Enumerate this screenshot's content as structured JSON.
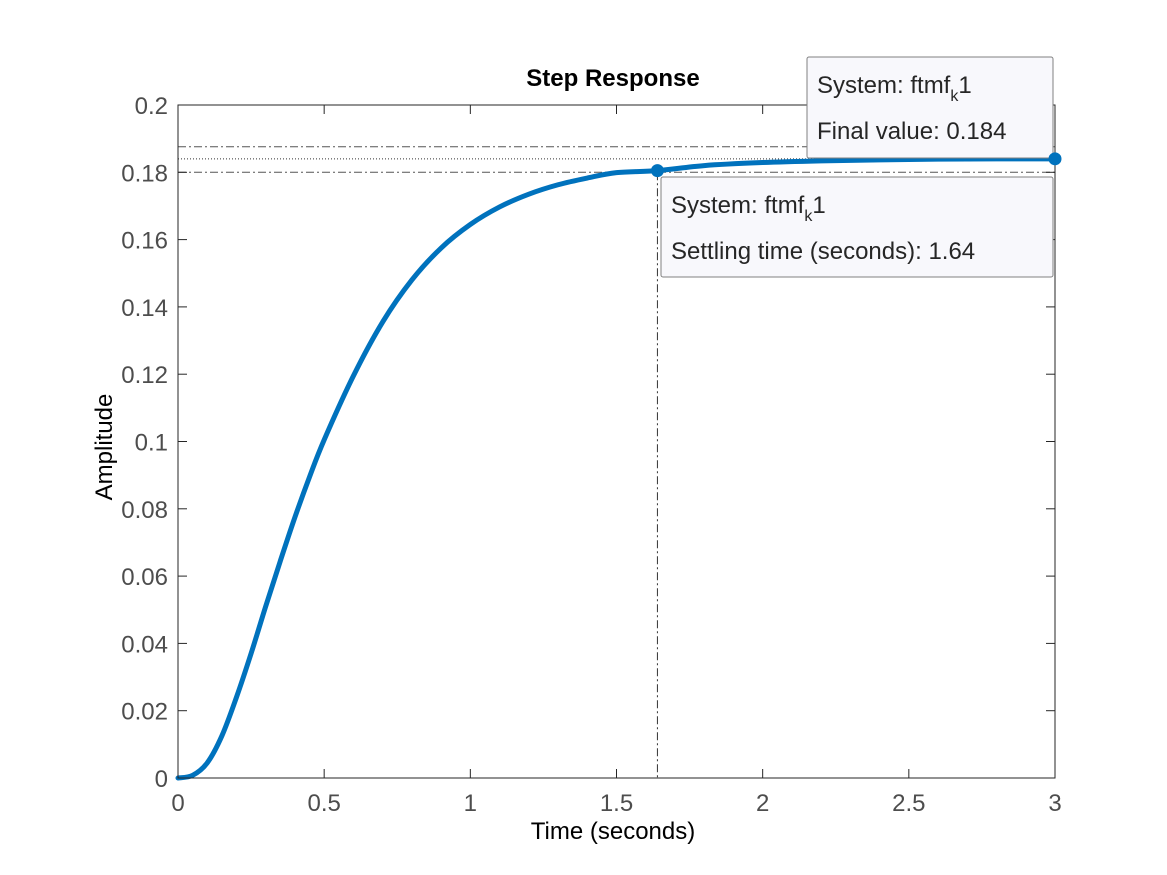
{
  "chart_data": {
    "type": "line",
    "title": "Step Response",
    "xlabel": "Time (seconds)",
    "ylabel": "Amplitude",
    "xlim": [
      0,
      3
    ],
    "ylim": [
      0,
      0.2
    ],
    "xticks": [
      0,
      0.5,
      1,
      1.5,
      2,
      2.5,
      3
    ],
    "xtick_labels": [
      "0",
      "0.5",
      "1",
      "1.5",
      "2",
      "2.5",
      "3"
    ],
    "yticks": [
      0,
      0.02,
      0.04,
      0.06,
      0.08,
      0.1,
      0.12,
      0.14,
      0.16,
      0.18,
      0.2
    ],
    "ytick_labels": [
      "0",
      "0.02",
      "0.04",
      "0.06",
      "0.08",
      "0.1",
      "0.12",
      "0.14",
      "0.16",
      "0.18",
      "0.2"
    ],
    "grid": false,
    "series": [
      {
        "color": "#0072BD",
        "x": [
          0,
          0.05,
          0.1,
          0.15,
          0.2,
          0.25,
          0.3,
          0.35,
          0.4,
          0.45,
          0.5,
          0.6,
          0.7,
          0.8,
          0.9,
          1.0,
          1.1,
          1.2,
          1.3,
          1.4,
          1.5,
          1.64,
          1.8,
          2.0,
          2.2,
          2.4,
          2.6,
          2.8,
          3.0
        ],
        "y": [
          0,
          0.0008,
          0.0045,
          0.0125,
          0.024,
          0.037,
          0.051,
          0.0645,
          0.0775,
          0.0895,
          0.1005,
          0.1195,
          0.1355,
          0.148,
          0.1575,
          0.1645,
          0.1697,
          0.1735,
          0.1763,
          0.1783,
          0.1799,
          0.1805,
          0.182,
          0.1829,
          0.1834,
          0.1837,
          0.1839,
          0.184,
          0.184
        ]
      }
    ],
    "reference_lines": {
      "final_value": 0.184,
      "settling_band_upper": 0.1876,
      "settling_band_lower": 0.18,
      "settling_time": 1.64
    },
    "annotations": [
      {
        "name": "final-value",
        "x": 3,
        "y": 0.184,
        "line1_prefix": "System: ftmf",
        "line1_sub": "k",
        "line1_suffix": "1",
        "line2": "Final value: 0.184"
      },
      {
        "name": "settling-time",
        "x": 1.64,
        "y": 0.1805,
        "line1_prefix": "System: ftmf",
        "line1_sub": "k",
        "line1_suffix": "1",
        "line2": "Settling time (seconds): 1.64"
      }
    ]
  }
}
